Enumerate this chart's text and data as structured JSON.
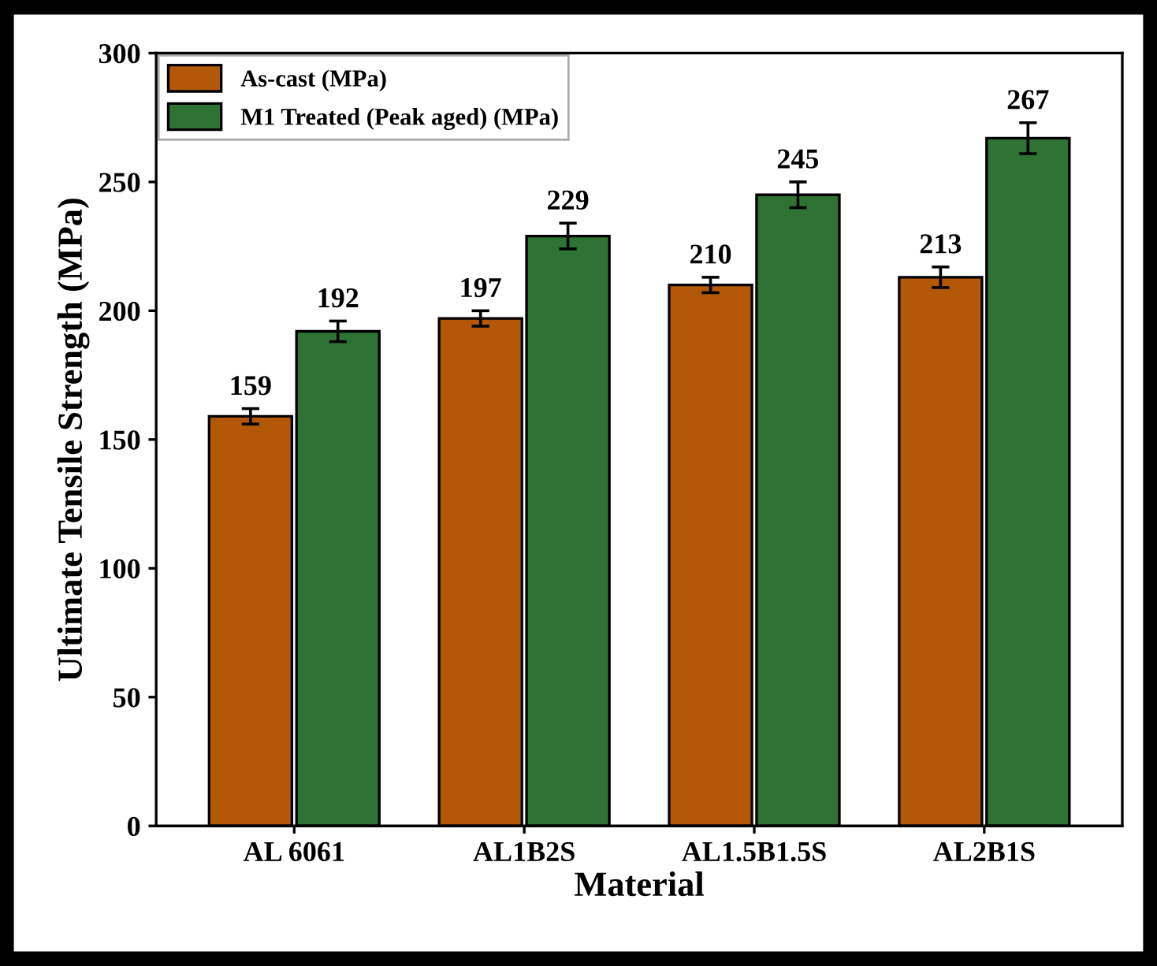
{
  "chart_data": {
    "type": "bar",
    "xlabel": "Material",
    "ylabel": "Ultimate Tensile Strength (MPa)",
    "categories": [
      "AL 6061",
      "AL1B2S",
      "AL1.5B1.5S",
      "AL2B1S"
    ],
    "series": [
      {
        "name": "As-cast (MPa)",
        "color": "#b35806",
        "values": [
          159,
          197,
          210,
          213
        ],
        "errors": [
          3,
          3,
          3,
          4
        ]
      },
      {
        "name": "M1 Treated (Peak aged) (MPa)",
        "color": "#2e7333",
        "values": [
          192,
          229,
          245,
          267
        ],
        "errors": [
          4,
          5,
          5,
          6
        ]
      }
    ],
    "ylim": [
      0,
      300
    ],
    "yticks": [
      0,
      50,
      100,
      150,
      200,
      250,
      300
    ],
    "data_labels": true,
    "legend": "top left",
    "grid": false
  }
}
